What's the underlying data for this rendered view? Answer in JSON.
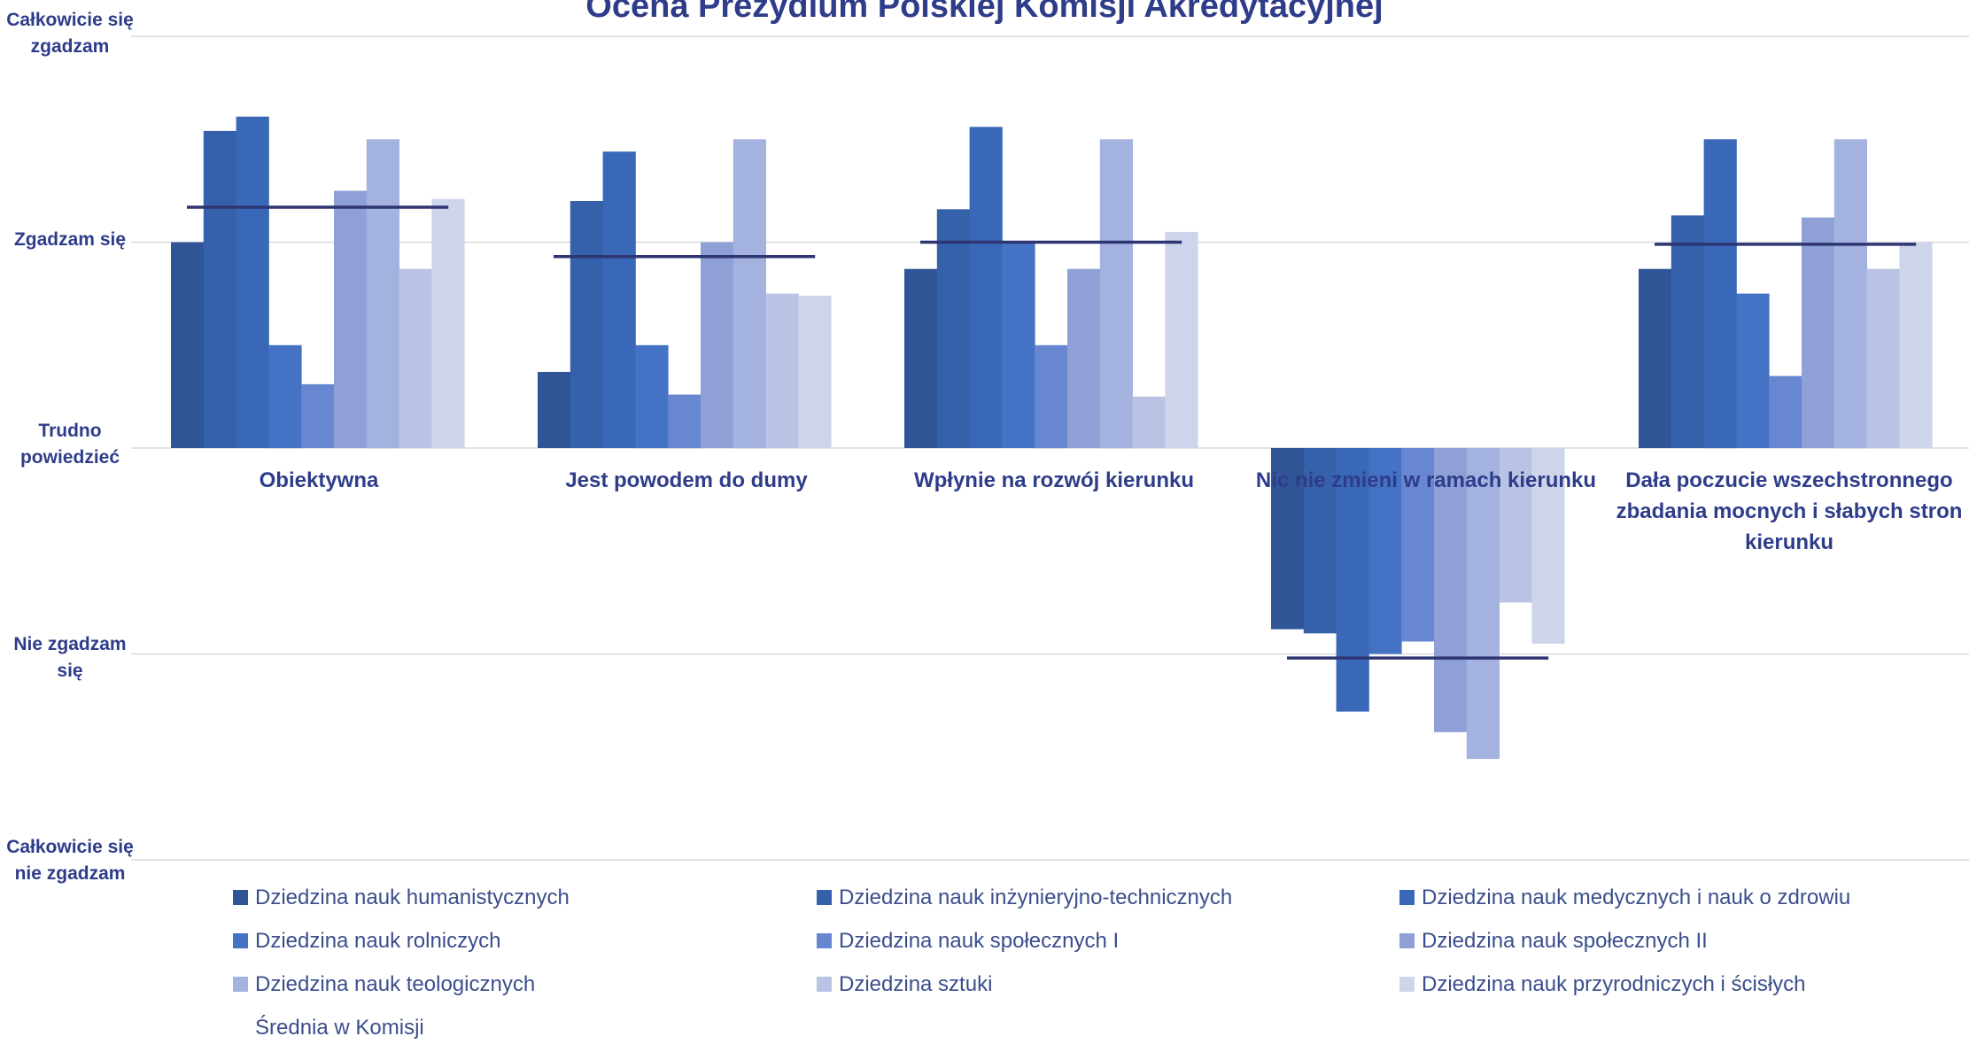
{
  "chart_data": {
    "type": "bar",
    "title": "Ocena Prezydium Polskiej Komisji Akredytacyjnej",
    "y_scale_labels": [
      "Całkowicie się zgadzam",
      "Zgadzam się",
      "Trudno powiedzieć",
      "Nie zgadzam się",
      "Całkowicie się nie zgadzam"
    ],
    "ylim": [
      -2,
      2
    ],
    "grid": true,
    "legend_position": "bottom",
    "categories": [
      "Obiektywna",
      "Jest powodem do dumy",
      "Wpłynie na rozwój kierunku",
      "Nic nie zmieni w ramach kierunku",
      "Dała poczucie wszechstronnego zbadania mocnych i słabych stron kierunku"
    ],
    "series": [
      {
        "name": "Dziedzina nauk humanistycznych",
        "color": "#2f5597",
        "values": [
          1.0,
          0.37,
          0.87,
          -0.88,
          0.87
        ]
      },
      {
        "name": "Dziedzina nauk inżynieryjno-technicznych",
        "color": "#3560aa",
        "values": [
          1.54,
          1.2,
          1.16,
          -0.9,
          1.13
        ]
      },
      {
        "name": "Dziedzina nauk medycznych i nauk o zdrowiu",
        "color": "#3a68b8",
        "values": [
          1.61,
          1.44,
          1.56,
          -1.28,
          1.5
        ]
      },
      {
        "name": "Dziedzina nauk rolniczych",
        "color": "#4472c4",
        "values": [
          0.5,
          0.5,
          1.0,
          -1.0,
          0.75
        ]
      },
      {
        "name": "Dziedzina nauk społecznych  I",
        "color": "#6788d0",
        "values": [
          0.31,
          0.26,
          0.5,
          -0.94,
          0.35
        ]
      },
      {
        "name": "Dziedzina nauk społecznych II",
        "color": "#8ea0d6",
        "values": [
          1.25,
          1.0,
          0.87,
          -1.38,
          1.12
        ]
      },
      {
        "name": "Dziedzina nauk teologicznych",
        "color": "#a3b2de",
        "values": [
          1.5,
          1.5,
          1.5,
          -1.51,
          1.5
        ]
      },
      {
        "name": "Dziedzina sztuki",
        "color": "#b9c3e3",
        "values": [
          0.87,
          0.75,
          0.25,
          -0.75,
          0.87
        ]
      },
      {
        "name": "Dziedzina nauk przyrodniczych i ścisłych",
        "color": "#ced5eb",
        "values": [
          1.21,
          0.74,
          1.05,
          -0.95,
          1.0
        ]
      }
    ],
    "average": {
      "name": "Średnia w Komisji",
      "color": "#2e3572",
      "values": [
        1.17,
        0.93,
        1.0,
        -1.02,
        0.99
      ]
    }
  }
}
